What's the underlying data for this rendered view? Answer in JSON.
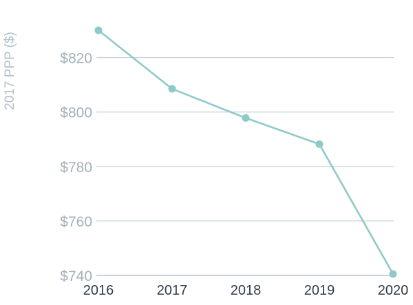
{
  "chart_data": {
    "type": "line",
    "title": "",
    "xlabel": "",
    "ylabel": "2017 PPP ($)",
    "categories": [
      "2016",
      "2017",
      "2018",
      "2019",
      "2020"
    ],
    "series": [
      {
        "values": [
          830,
          808.5,
          797.8,
          788.2,
          740.5
        ]
      }
    ],
    "y_ticks": [
      740,
      760,
      780,
      800,
      820
    ],
    "y_tick_labels": [
      "$740",
      "$760",
      "$780",
      "$800",
      "$820"
    ],
    "ylim": [
      740,
      830
    ],
    "grid": true,
    "legend": "none",
    "colors": {
      "line": "#8ecac8",
      "grid": "#c9d6de",
      "tick_text": "#a3b1bb",
      "x_tick_text": "#2f3d4a",
      "axis_label": "#b3c0c8"
    }
  }
}
